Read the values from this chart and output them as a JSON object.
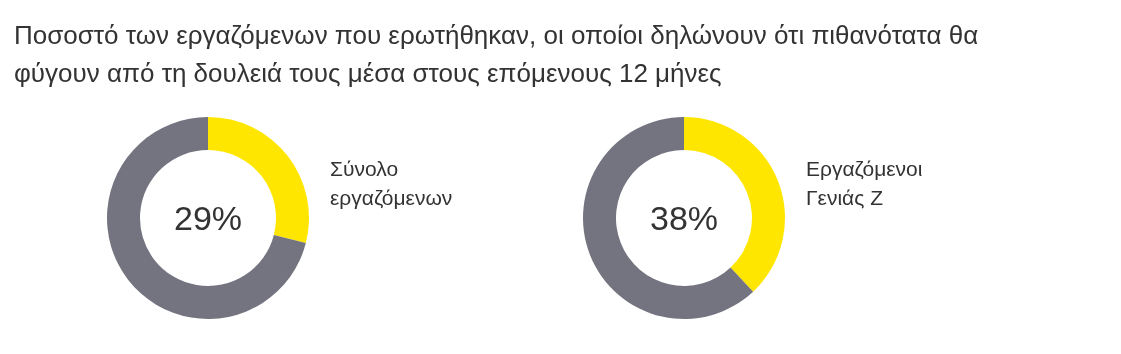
{
  "chart_data": [
    {
      "type": "other",
      "title": "Ποσοστό των εργαζόμενων που ερωτήθηκαν, οι οποίοι δηλώνουν ότι πιθανότατα θα φύγουν από τη δουλειά τους μέσα στους επόμενους 12 μήνες"
    },
    {
      "type": "donut",
      "title": "Σύνολο εργαζόμενων",
      "categories": [
        null,
        null
      ],
      "values": [
        29,
        71
      ],
      "colors": [
        "#ffe600",
        "#747480"
      ],
      "annotations": [
        "29%"
      ]
    },
    {
      "type": "donut",
      "title": "Εργαζόμενοι Γενιάς Ζ",
      "categories": [
        null,
        null
      ],
      "values": [
        38,
        62
      ],
      "colors": [
        "#ffe600",
        "#747480"
      ],
      "annotations": [
        "38%"
      ]
    }
  ]
}
